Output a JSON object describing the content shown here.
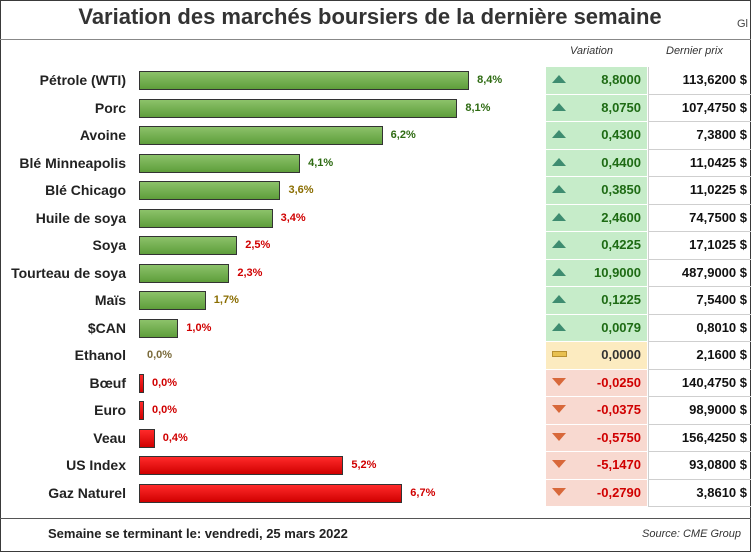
{
  "header": {
    "title": "Variation des marchés boursiers de la dernière semaine",
    "corner": "Gl",
    "col_variation": "Variation",
    "col_price": "Dernier prix"
  },
  "footer": {
    "week": "Semaine se terminant le: vendredi, 25 mars 2022",
    "source": "Source: CME Group"
  },
  "colors": {
    "positive_bar": "#6aa84f",
    "negative_bar": "#e00000",
    "strong_label": "#2e6b12",
    "mid_label": "#8a6d00",
    "weak_label": "#d00000",
    "neutral_label": "#7a6a3a",
    "up_cell": "#c6ecc9",
    "flat_cell": "#fcebc0",
    "down_cell": "#f8d9d0"
  },
  "chart_data": {
    "type": "bar",
    "orientation": "horizontal",
    "title": "Variation des marchés boursiers de la dernière semaine",
    "categories": [
      "Pétrole (WTI)",
      "Porc",
      "Avoine",
      "Blé Minneapolis",
      "Blé Chicago",
      "Huile de soya",
      "Soya",
      "Tourteau de soya",
      "Maïs",
      "$CAN",
      "Ethanol",
      "Bœuf",
      "Euro",
      "Veau",
      "US Index",
      "Gaz Naturel"
    ],
    "values": [
      8.4,
      8.1,
      6.2,
      4.1,
      3.6,
      3.4,
      2.5,
      2.3,
      1.7,
      1.0,
      0.0,
      0.0,
      0.0,
      0.4,
      5.2,
      6.7
    ],
    "labels": [
      "8,4%",
      "8,1%",
      "6,2%",
      "4,1%",
      "3,6%",
      "3,4%",
      "2,5%",
      "2,3%",
      "1,7%",
      "1,0%",
      "0,0%",
      "0,0%",
      "0,0%",
      "0,4%",
      "5,2%",
      "6,7%"
    ],
    "direction": [
      "up",
      "up",
      "up",
      "up",
      "up",
      "up",
      "up",
      "up",
      "up",
      "up",
      "flat",
      "down",
      "down",
      "down",
      "down",
      "down"
    ],
    "label_color": [
      "strong",
      "strong",
      "strong",
      "strong",
      "mid",
      "weak",
      "weak",
      "weak",
      "mid",
      "weak",
      "neutral",
      "weak",
      "weak",
      "weak",
      "weak",
      "weak"
    ],
    "variation": [
      "8,8000",
      "8,0750",
      "0,4300",
      "0,4400",
      "0,3850",
      "2,4600",
      "0,4225",
      "10,9000",
      "0,1225",
      "0,0079",
      "0,0000",
      "-0,0250",
      "-0,0375",
      "-0,5750",
      "-5,1470",
      "-0,2790"
    ],
    "last_price": [
      "113,6200 $",
      "107,4750 $",
      "7,3800 $",
      "11,0425 $",
      "11,0225 $",
      "74,7500 $",
      "17,1025 $",
      "487,9000 $",
      "7,5400 $",
      "0,8010 $",
      "2,1600 $",
      "140,4750 $",
      "98,9000 $",
      "156,4250 $",
      "93,0800 $",
      "3,8610 $"
    ],
    "xlim": [
      0,
      8.4
    ],
    "grid": false,
    "legend": "none"
  }
}
